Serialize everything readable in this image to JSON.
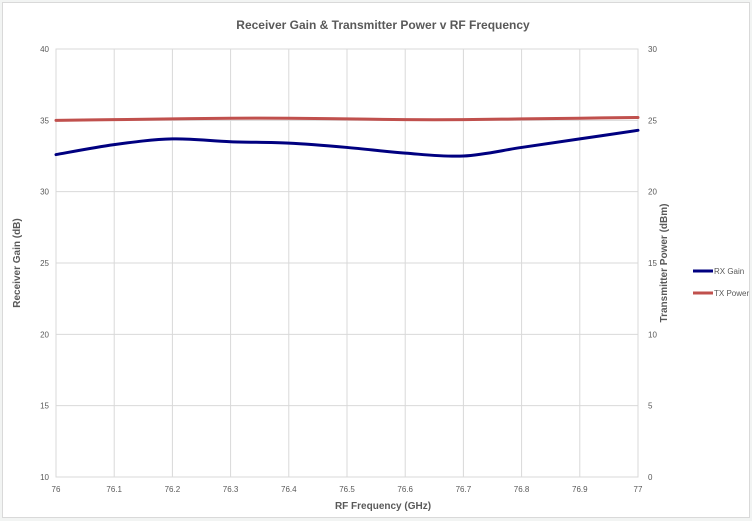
{
  "chart_data": {
    "type": "line",
    "title": "Receiver Gain & Transmitter Power v RF Frequency",
    "xlabel": "RF Frequency (GHz)",
    "ylabel": "Receiver Gain (dB)",
    "y2label": "Transmitter Power (dBm)",
    "xlim": [
      76,
      77
    ],
    "ylim": [
      10,
      40
    ],
    "y2lim": [
      0,
      30
    ],
    "x_ticks": [
      "76",
      "76.1",
      "76.2",
      "76.3",
      "76.4",
      "76.5",
      "76.6",
      "76.7",
      "76.8",
      "76.9",
      "77"
    ],
    "y_ticks": [
      "10",
      "15",
      "20",
      "25",
      "30",
      "35",
      "40"
    ],
    "y2_ticks": [
      "0",
      "5",
      "10",
      "15",
      "20",
      "25",
      "30"
    ],
    "grid": true,
    "legend_position": "right",
    "series": [
      {
        "name": "RX Gain",
        "axis": "left",
        "color": "#000080",
        "x": [
          76,
          76.1,
          76.2,
          76.3,
          76.4,
          76.5,
          76.6,
          76.7,
          76.8,
          76.9,
          77
        ],
        "y": [
          32.6,
          33.3,
          33.7,
          33.5,
          33.4,
          33.1,
          32.7,
          32.5,
          33.1,
          33.7,
          34.3
        ]
      },
      {
        "name": "TX Power",
        "axis": "right",
        "color": "#c0504d",
        "x": [
          76,
          76.1,
          76.2,
          76.3,
          76.4,
          76.5,
          76.6,
          76.7,
          76.8,
          76.9,
          77
        ],
        "y": [
          25.0,
          25.05,
          25.1,
          25.15,
          25.15,
          25.1,
          25.05,
          25.05,
          25.1,
          25.15,
          25.2
        ]
      }
    ]
  }
}
